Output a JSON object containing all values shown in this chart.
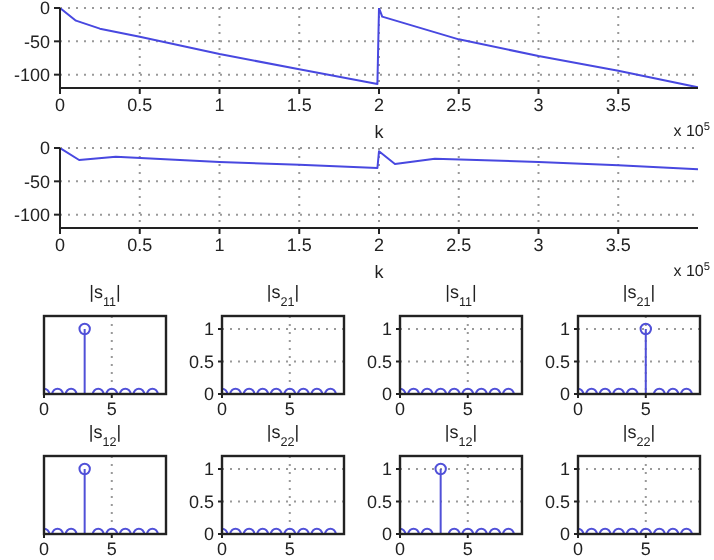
{
  "chart_data": [
    {
      "type": "line",
      "xlabel": "k",
      "annotations": [
        "x 10$^{5}$"
      ],
      "grid": true,
      "xlim": [
        0,
        4
      ],
      "ylim": [
        -120,
        0
      ],
      "xticks": [
        0,
        0.5,
        1,
        1.5,
        2,
        2.5,
        3,
        3.5
      ],
      "yticks": [
        0,
        -50,
        -100
      ],
      "series": [
        {
          "color": "#4848e0",
          "x": [
            0,
            0.1,
            0.25,
            0.5,
            1,
            1.5,
            1.99,
            2,
            2.02,
            2.5,
            3,
            3.5,
            4
          ],
          "values": [
            0,
            -19,
            -31,
            -43,
            -69,
            -92,
            -114,
            0,
            -13,
            -47,
            -72,
            -94,
            -119
          ]
        }
      ]
    },
    {
      "type": "line",
      "xlabel": "k",
      "annotations": [
        "x 10$^{5}$"
      ],
      "grid": true,
      "xlim": [
        0,
        4
      ],
      "ylim": [
        -120,
        0
      ],
      "xticks": [
        0,
        0.5,
        1,
        1.5,
        2,
        2.5,
        3,
        3.5
      ],
      "yticks": [
        0,
        -50,
        -100
      ],
      "series": [
        {
          "color": "#4848e0",
          "x": [
            0,
            0.12,
            0.35,
            1,
            1.5,
            1.99,
            2,
            2.1,
            2.35,
            3,
            3.5,
            4
          ],
          "values": [
            0,
            -18,
            -13,
            -21,
            -25,
            -30,
            -5,
            -24,
            -16,
            -21,
            -26,
            -32
          ]
        }
      ]
    },
    {
      "type": "lollipop",
      "title": "|s$_{11}$|",
      "marker": "circle",
      "grid": true,
      "tick_labels": "x",
      "xlim": [
        0,
        9
      ],
      "ylim": [
        0,
        1.2
      ],
      "xticks": [
        0,
        5
      ],
      "yticks": [
        0,
        0.5,
        1
      ],
      "x": [
        0,
        1,
        2,
        3,
        4,
        5,
        6,
        7,
        8
      ],
      "color": "#5050d8",
      "values": [
        0,
        0,
        0,
        1,
        0,
        0,
        0,
        0,
        0
      ]
    },
    {
      "type": "lollipop",
      "title": "|s$_{21}$|",
      "marker": "circle",
      "grid": true,
      "xlim": [
        0,
        9
      ],
      "ylim": [
        0,
        1.2
      ],
      "xticks": [
        0,
        5
      ],
      "yticks": [
        0,
        0.5,
        1
      ],
      "x": [
        0,
        1,
        2,
        3,
        4,
        5,
        6,
        7,
        8
      ],
      "color": "#5050d8",
      "values": [
        0,
        0,
        0,
        0,
        0,
        0,
        0,
        0,
        0
      ]
    },
    {
      "type": "lollipop",
      "title": "|s$_{11}$|",
      "marker": "circle",
      "grid": true,
      "xlim": [
        0,
        9
      ],
      "ylim": [
        0,
        1.2
      ],
      "xticks": [
        0,
        5
      ],
      "yticks": [
        0,
        0.5,
        1
      ],
      "x": [
        0,
        1,
        2,
        3,
        4,
        5,
        6,
        7,
        8
      ],
      "color": "#5050d8",
      "values": [
        0,
        0,
        0,
        0,
        0,
        0,
        0,
        0,
        0
      ]
    },
    {
      "type": "lollipop",
      "title": "|s$_{21}$|",
      "marker": "circle",
      "grid": true,
      "xlim": [
        0,
        9
      ],
      "ylim": [
        0,
        1.2
      ],
      "xticks": [
        0,
        5
      ],
      "yticks": [
        0,
        0.5,
        1
      ],
      "x": [
        0,
        1,
        2,
        3,
        4,
        5,
        6,
        7,
        8
      ],
      "color": "#5050d8",
      "values": [
        0,
        0,
        0,
        0,
        0,
        1,
        0,
        0,
        0
      ]
    },
    {
      "type": "lollipop",
      "title": "|s$_{12}$|",
      "marker": "circle",
      "grid": true,
      "tick_labels": "x",
      "xlim": [
        0,
        9
      ],
      "ylim": [
        0,
        1.2
      ],
      "xticks": [
        0,
        5
      ],
      "yticks": [
        0,
        0.5,
        1
      ],
      "x": [
        0,
        1,
        2,
        3,
        4,
        5,
        6,
        7,
        8
      ],
      "color": "#5050d8",
      "values": [
        0,
        0,
        0,
        1,
        0,
        0,
        0,
        0,
        0
      ]
    },
    {
      "type": "lollipop",
      "title": "|s$_{22}$|",
      "marker": "circle",
      "grid": true,
      "xlim": [
        0,
        9
      ],
      "ylim": [
        0,
        1.2
      ],
      "xticks": [
        0,
        5
      ],
      "yticks": [
        0,
        0.5,
        1
      ],
      "x": [
        0,
        1,
        2,
        3,
        4,
        5,
        6,
        7,
        8
      ],
      "color": "#5050d8",
      "values": [
        0,
        0,
        0,
        0,
        0,
        0,
        0,
        0,
        0
      ]
    },
    {
      "type": "lollipop",
      "title": "|s$_{12}$|",
      "marker": "circle",
      "grid": true,
      "xlim": [
        0,
        9
      ],
      "ylim": [
        0,
        1.2
      ],
      "xticks": [
        0,
        5
      ],
      "yticks": [
        0,
        0.5,
        1
      ],
      "x": [
        0,
        1,
        2,
        3,
        4,
        5,
        6,
        7,
        8
      ],
      "color": "#5050d8",
      "values": [
        0,
        0,
        0,
        1,
        0,
        0,
        0,
        0,
        0
      ]
    },
    {
      "type": "lollipop",
      "title": "|s$_{22}$|",
      "marker": "circle",
      "grid": true,
      "xlim": [
        0,
        9
      ],
      "ylim": [
        0,
        1.2
      ],
      "xticks": [
        0,
        5
      ],
      "yticks": [
        0,
        0.5,
        1
      ],
      "x": [
        0,
        1,
        2,
        3,
        4,
        5,
        6,
        7,
        8
      ],
      "color": "#5050d8",
      "values": [
        0,
        0,
        0,
        0,
        0,
        0,
        0,
        0,
        0
      ]
    }
  ]
}
